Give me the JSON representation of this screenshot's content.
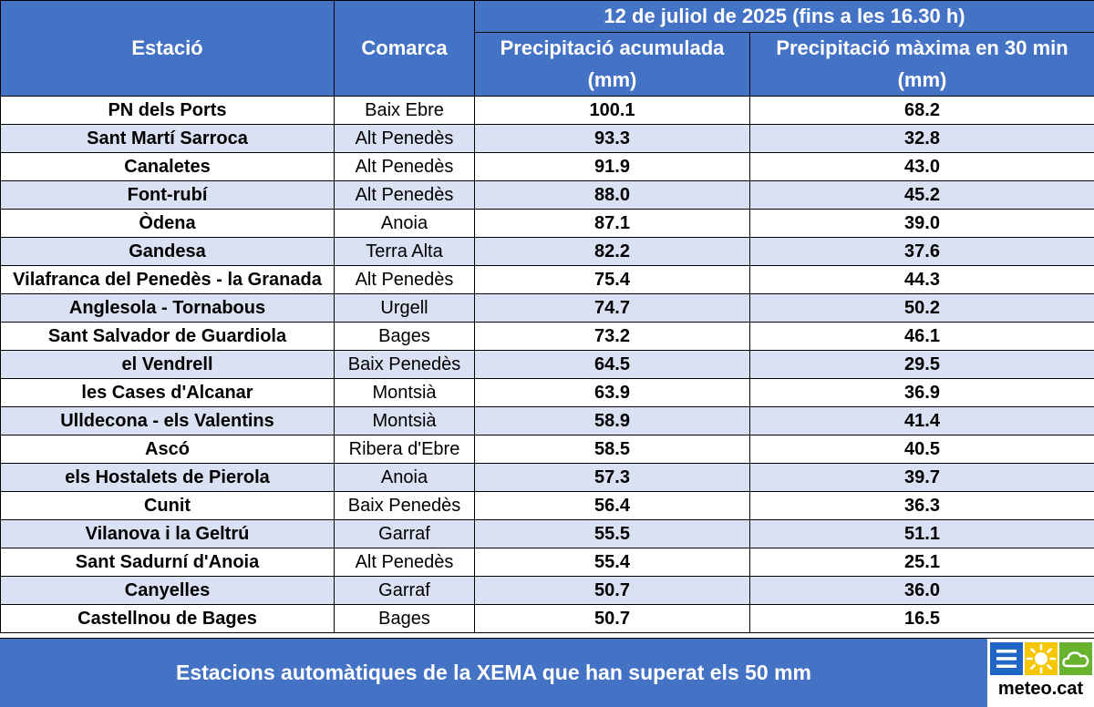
{
  "header": {
    "col_station": "Estació",
    "col_region": "Comarca",
    "date_line": "12 de juliol de 2025 (fins a les 16.30 h)",
    "col_accum_line1": "Precipitació acumulada",
    "col_accum_line2": "(mm)",
    "col_max_line1": "Precipitació màxima en 30 min",
    "col_max_line2": "(mm)"
  },
  "rows": [
    {
      "station": "PN dels Ports",
      "region": "Baix Ebre",
      "accum": "100.1",
      "max30": "68.2"
    },
    {
      "station": "Sant Martí Sarroca",
      "region": "Alt Penedès",
      "accum": "93.3",
      "max30": "32.8"
    },
    {
      "station": "Canaletes",
      "region": "Alt Penedès",
      "accum": "91.9",
      "max30": "43.0"
    },
    {
      "station": "Font-rubí",
      "region": "Alt Penedès",
      "accum": "88.0",
      "max30": "45.2"
    },
    {
      "station": "Òdena",
      "region": "Anoia",
      "accum": "87.1",
      "max30": "39.0"
    },
    {
      "station": "Gandesa",
      "region": "Terra Alta",
      "accum": "82.2",
      "max30": "37.6"
    },
    {
      "station": "Vilafranca del Penedès - la Granada",
      "region": "Alt Penedès",
      "accum": "75.4",
      "max30": "44.3"
    },
    {
      "station": "Anglesola - Tornabous",
      "region": "Urgell",
      "accum": "74.7",
      "max30": "50.2"
    },
    {
      "station": "Sant Salvador de Guardiola",
      "region": "Bages",
      "accum": "73.2",
      "max30": "46.1"
    },
    {
      "station": "el Vendrell",
      "region": "Baix Penedès",
      "accum": "64.5",
      "max30": "29.5"
    },
    {
      "station": "les Cases d'Alcanar",
      "region": "Montsià",
      "accum": "63.9",
      "max30": "36.9"
    },
    {
      "station": "Ulldecona - els Valentins",
      "region": "Montsià",
      "accum": "58.9",
      "max30": "41.4"
    },
    {
      "station": "Ascó",
      "region": "Ribera d'Ebre",
      "accum": "58.5",
      "max30": "40.5"
    },
    {
      "station": "els Hostalets de Pierola",
      "region": "Anoia",
      "accum": "57.3",
      "max30": "39.7"
    },
    {
      "station": "Cunit",
      "region": "Baix Penedès",
      "accum": "56.4",
      "max30": "36.3"
    },
    {
      "station": "Vilanova i la Geltrú",
      "region": "Garraf",
      "accum": "55.5",
      "max30": "51.1"
    },
    {
      "station": "Sant Sadurní d'Anoia",
      "region": "Alt Penedès",
      "accum": "55.4",
      "max30": "25.1"
    },
    {
      "station": "Canyelles",
      "region": "Garraf",
      "accum": "50.7",
      "max30": "36.0"
    },
    {
      "station": "Castellnou de Bages",
      "region": "Bages",
      "accum": "50.7",
      "max30": "16.5"
    }
  ],
  "footer": {
    "caption": "Estacions automàtiques de la XEMA que han superat els 50 mm"
  },
  "logo": {
    "wordmark": "meteo.cat",
    "icons": [
      "menu-lines-icon",
      "sun-icon",
      "cloud-icon"
    ],
    "colors": {
      "blue": "#1f66c4",
      "yellow": "#f6c600",
      "green": "#67b32e"
    }
  },
  "colors": {
    "header_bg": "#4472c4",
    "header_text": "#ffffff",
    "row_alt_bg": "#d9e1f2"
  }
}
